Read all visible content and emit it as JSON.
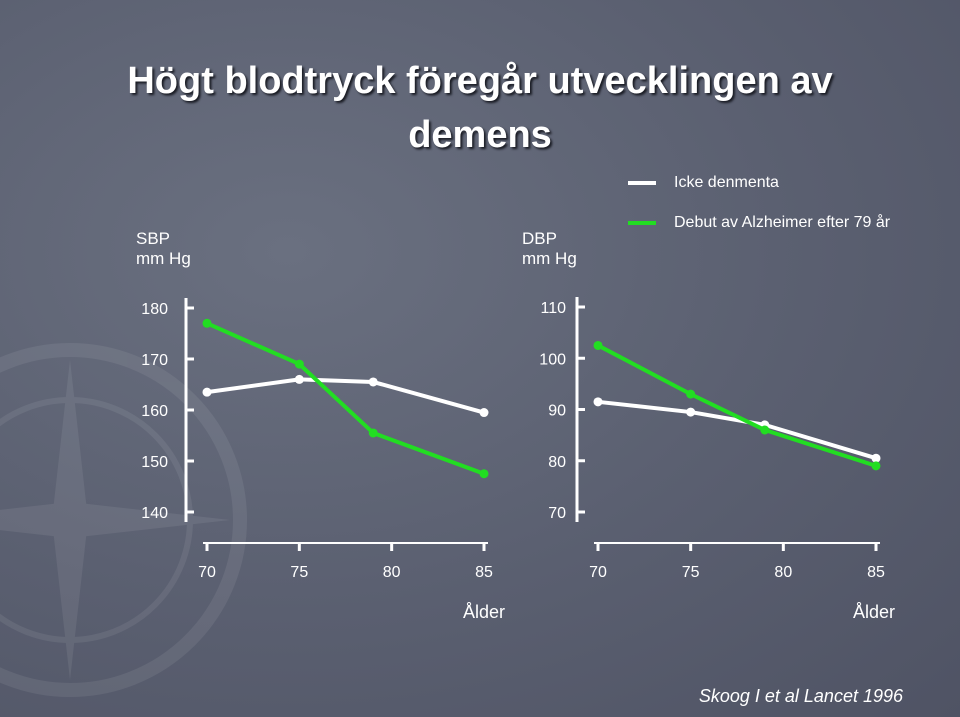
{
  "title": {
    "line1": "Högt blodtryck föregår utvecklingen av",
    "line2": "demens"
  },
  "legend": [
    {
      "label": "Icke denmenta",
      "color": "#ffffff"
    },
    {
      "label": "Debut av Alzheimer efter 79 år",
      "color": "#22dd22"
    }
  ],
  "citation": "Skoog I et al Lancet 1996",
  "chart_data": [
    {
      "type": "line",
      "ylabel": "SBP\nmm Hg",
      "xlabel": "Ålder",
      "xlim": [
        70,
        85
      ],
      "ylim": [
        140,
        180
      ],
      "x_ticks": [
        70,
        75,
        80,
        85
      ],
      "y_ticks": [
        140,
        150,
        160,
        170,
        180
      ],
      "series": [
        {
          "name": "Icke denmenta",
          "color": "#ffffff",
          "x": [
            70,
            75,
            79,
            85
          ],
          "y": [
            163.5,
            166,
            165.5,
            159.5
          ]
        },
        {
          "name": "Debut av Alzheimer efter 79 år",
          "color": "#22dd22",
          "x": [
            70,
            75,
            79,
            85
          ],
          "y": [
            177,
            169,
            155.5,
            147.5
          ]
        }
      ]
    },
    {
      "type": "line",
      "ylabel": "DBP\nmm Hg",
      "xlabel": "Ålder",
      "xlim": [
        70,
        85
      ],
      "ylim": [
        70,
        110
      ],
      "x_ticks": [
        70,
        75,
        80,
        85
      ],
      "y_ticks": [
        70,
        80,
        90,
        100,
        110
      ],
      "series": [
        {
          "name": "Icke denmenta",
          "color": "#ffffff",
          "x": [
            70,
            75,
            79,
            85
          ],
          "y": [
            91.5,
            89.5,
            87,
            80.5
          ]
        },
        {
          "name": "Debut av Alzheimer efter 79 år",
          "color": "#22dd22",
          "x": [
            70,
            75,
            79,
            85
          ],
          "y": [
            102.5,
            93,
            86,
            79
          ]
        }
      ]
    }
  ]
}
